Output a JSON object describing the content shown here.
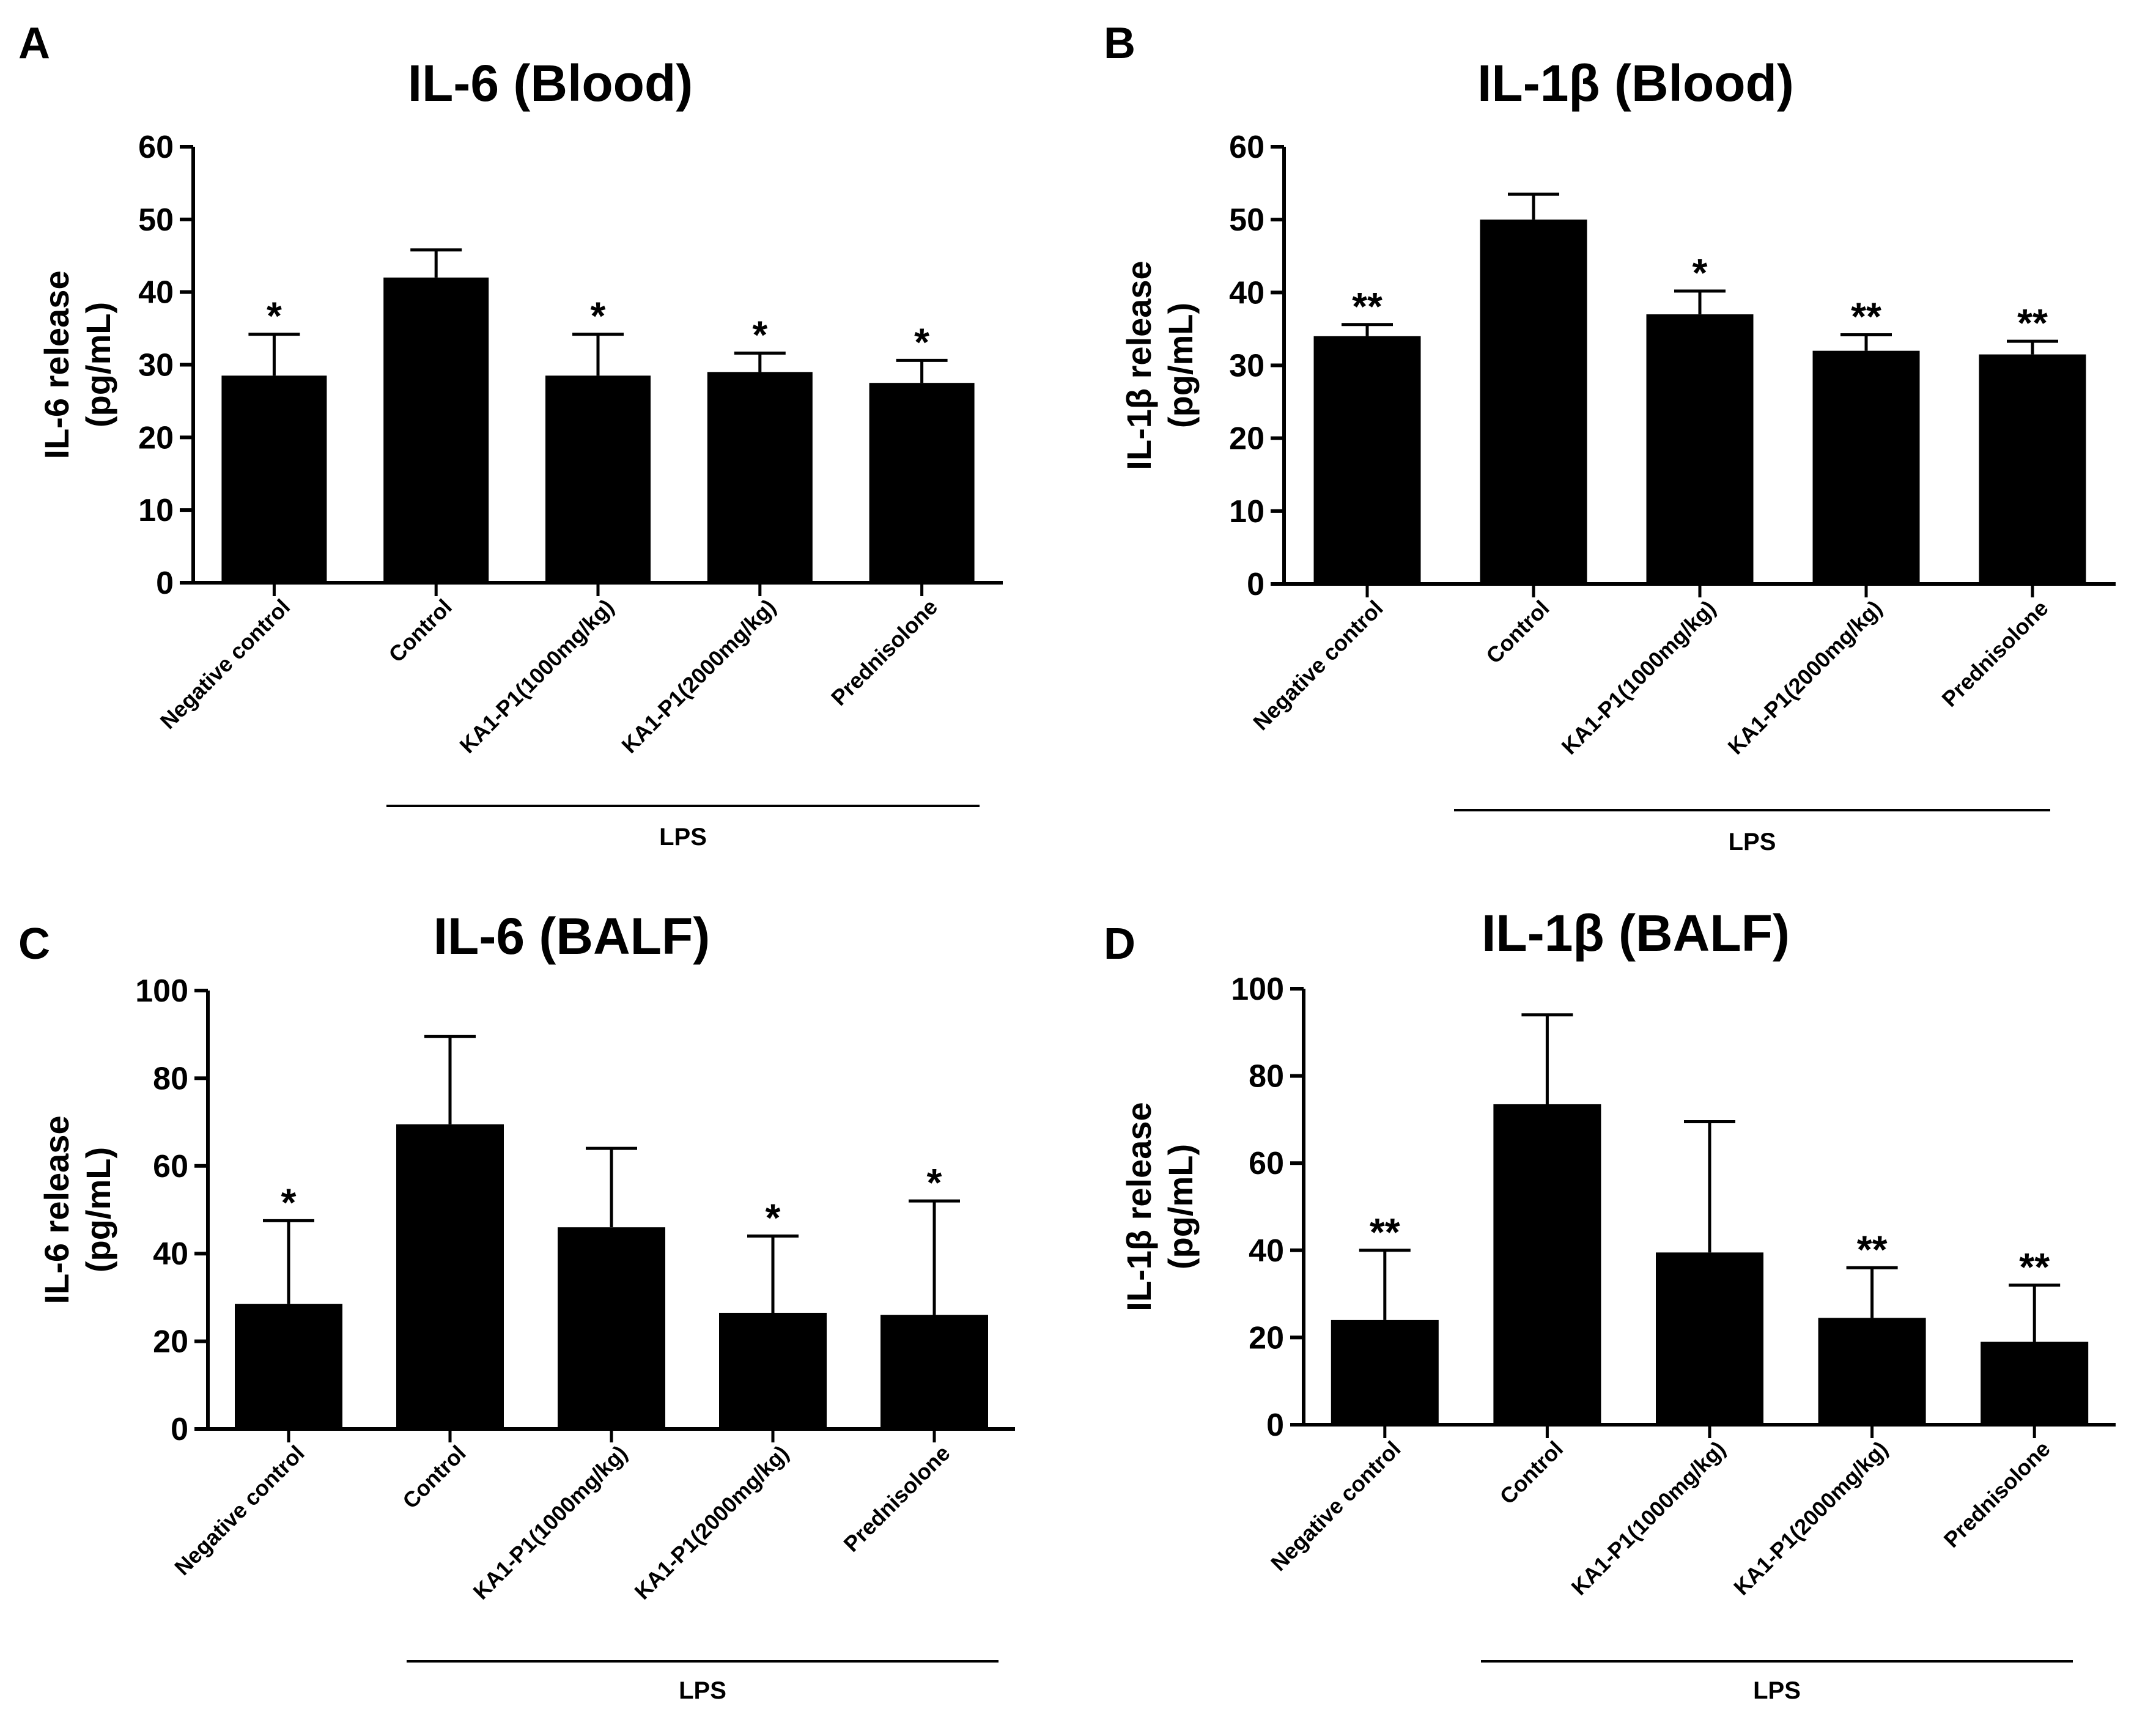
{
  "chart_data": [
    {
      "type": "bar",
      "panel": "A",
      "title": "IL-6 (Blood)",
      "ylabel": "IL-6 release (pg/mL)",
      "ylabel_lines": [
        "IL-6 release",
        "(pg/mL)"
      ],
      "ylim": [
        0,
        60
      ],
      "yticks": [
        "0",
        "10",
        "20",
        "30",
        "40",
        "50",
        "60"
      ],
      "categories": [
        "Negative control",
        "Control",
        "KA1-P1(1000mg/kg)",
        "KA1-P1(2000mg/kg)",
        "Prednisolone"
      ],
      "values": [
        28.5,
        42,
        28.5,
        29,
        27.5
      ],
      "errors": [
        5.7,
        3.8,
        5.7,
        2.6,
        3.1
      ],
      "significance": [
        "*",
        "",
        "*",
        "*",
        "*"
      ],
      "group_label": "LPS",
      "group_span": [
        "Control",
        "Prednisolone"
      ]
    },
    {
      "type": "bar",
      "panel": "B",
      "title": "IL-1β (Blood)",
      "ylabel": "IL-1β release (pg/mL)",
      "ylabel_lines": [
        "IL-1β release",
        "(pg/mL)"
      ],
      "ylim": [
        0,
        60
      ],
      "yticks": [
        "0",
        "10",
        "20",
        "30",
        "40",
        "50",
        "60"
      ],
      "categories": [
        "Negative control",
        "Control",
        "KA1-P1(1000mg/kg)",
        "KA1-P1(2000mg/kg)",
        "Prednisolone"
      ],
      "values": [
        34,
        50,
        37,
        32,
        31.5
      ],
      "errors": [
        1.6,
        3.5,
        3.2,
        2.2,
        1.8
      ],
      "significance": [
        "**",
        "",
        "*",
        "**",
        "**"
      ],
      "group_label": "LPS",
      "group_span": [
        "Control",
        "Prednisolone"
      ]
    },
    {
      "type": "bar",
      "panel": "C",
      "title": "IL-6 (BALF)",
      "ylabel": "IL-6 release (pg/mL)",
      "ylabel_lines": [
        "IL-6 release",
        "(pg/mL)"
      ],
      "ylim": [
        0,
        100
      ],
      "yticks": [
        "0",
        "20",
        "40",
        "60",
        "80",
        "100"
      ],
      "categories": [
        "Negative control",
        "Control",
        "KA1-P1(1000mg/kg)",
        "KA1-P1(2000mg/kg)",
        "Prednisolone"
      ],
      "values": [
        28.5,
        69.5,
        46,
        26.5,
        26
      ],
      "errors": [
        19,
        20,
        18,
        17.5,
        26
      ],
      "significance": [
        "*",
        "",
        "",
        "*",
        "*"
      ],
      "group_label": "LPS",
      "group_span": [
        "Control",
        "Prednisolone"
      ]
    },
    {
      "type": "bar",
      "panel": "D",
      "title": "IL-1β (BALF)",
      "ylabel": "IL-1β release (pg/mL)",
      "ylabel_lines": [
        "IL-1β release",
        "(pg/mL)"
      ],
      "ylim": [
        0,
        100
      ],
      "yticks": [
        "0",
        "20",
        "40",
        "60",
        "80",
        "100"
      ],
      "categories": [
        "Negative control",
        "Control",
        "KA1-P1(1000mg/kg)",
        "KA1-P1(2000mg/kg)",
        "Prednisolone"
      ],
      "values": [
        24,
        73.5,
        39.5,
        24.5,
        19
      ],
      "errors": [
        16,
        20.5,
        30,
        11.5,
        13
      ],
      "significance": [
        "**",
        "",
        "",
        "**",
        "**"
      ],
      "group_label": "LPS",
      "group_span": [
        "Control",
        "Prednisolone"
      ]
    }
  ]
}
